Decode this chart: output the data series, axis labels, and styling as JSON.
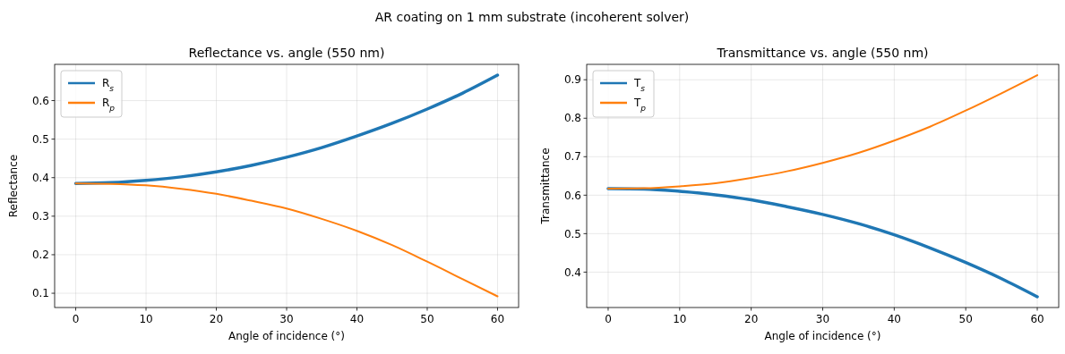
{
  "chart_data": [
    {
      "type": "line",
      "title": "Reflectance vs. angle (550 nm)",
      "xlabel": "Angle of incidence (°)",
      "ylabel": "Reflectance",
      "annotations": [
        "AR coating on 1 mm substrate (incoherent solver)"
      ],
      "x": [
        0,
        5,
        10,
        15,
        20,
        25,
        30,
        35,
        40,
        45,
        50,
        55,
        60
      ],
      "series": [
        {
          "name": "R$_{s}$",
          "color": "#1f77b4",
          "values": [
            0.385,
            0.387,
            0.393,
            0.402,
            0.415,
            0.432,
            0.453,
            0.478,
            0.508,
            0.541,
            0.578,
            0.619,
            0.666
          ]
        },
        {
          "name": "R$_{p}$",
          "color": "#ff7f0e",
          "values": [
            0.385,
            0.384,
            0.38,
            0.371,
            0.358,
            0.34,
            0.32,
            0.293,
            0.262,
            0.225,
            0.182,
            0.137,
            0.092
          ]
        }
      ],
      "xlim": [
        -3,
        63
      ],
      "xticks": [
        0,
        10,
        20,
        30,
        40,
        50,
        60
      ],
      "ylim": [
        0.063,
        0.694
      ],
      "yticks": [
        0.1,
        0.2,
        0.3,
        0.4,
        0.5,
        0.6
      ],
      "grid": true,
      "legend": "top left"
    },
    {
      "type": "line",
      "title": "Transmittance vs. angle (550 nm)",
      "xlabel": "Angle of incidence (°)",
      "ylabel": "Transmittance",
      "x": [
        0,
        5,
        10,
        15,
        20,
        25,
        30,
        35,
        40,
        45,
        50,
        55,
        60
      ],
      "series": [
        {
          "name": "T$_{s}$",
          "color": "#1f77b4",
          "values": [
            0.617,
            0.616,
            0.61,
            0.601,
            0.588,
            0.57,
            0.55,
            0.526,
            0.497,
            0.463,
            0.425,
            0.383,
            0.336
          ]
        },
        {
          "name": "T$_{p}$",
          "color": "#ff7f0e",
          "values": [
            0.617,
            0.618,
            0.623,
            0.631,
            0.645,
            0.662,
            0.684,
            0.71,
            0.742,
            0.778,
            0.82,
            0.865,
            0.912
          ]
        }
      ],
      "xlim": [
        -3,
        63
      ],
      "xticks": [
        0,
        10,
        20,
        30,
        40,
        50,
        60
      ],
      "ylim": [
        0.308,
        0.94
      ],
      "yticks": [
        0.4,
        0.5,
        0.6,
        0.7,
        0.8,
        0.9
      ],
      "grid": true,
      "legend": "top left"
    }
  ]
}
